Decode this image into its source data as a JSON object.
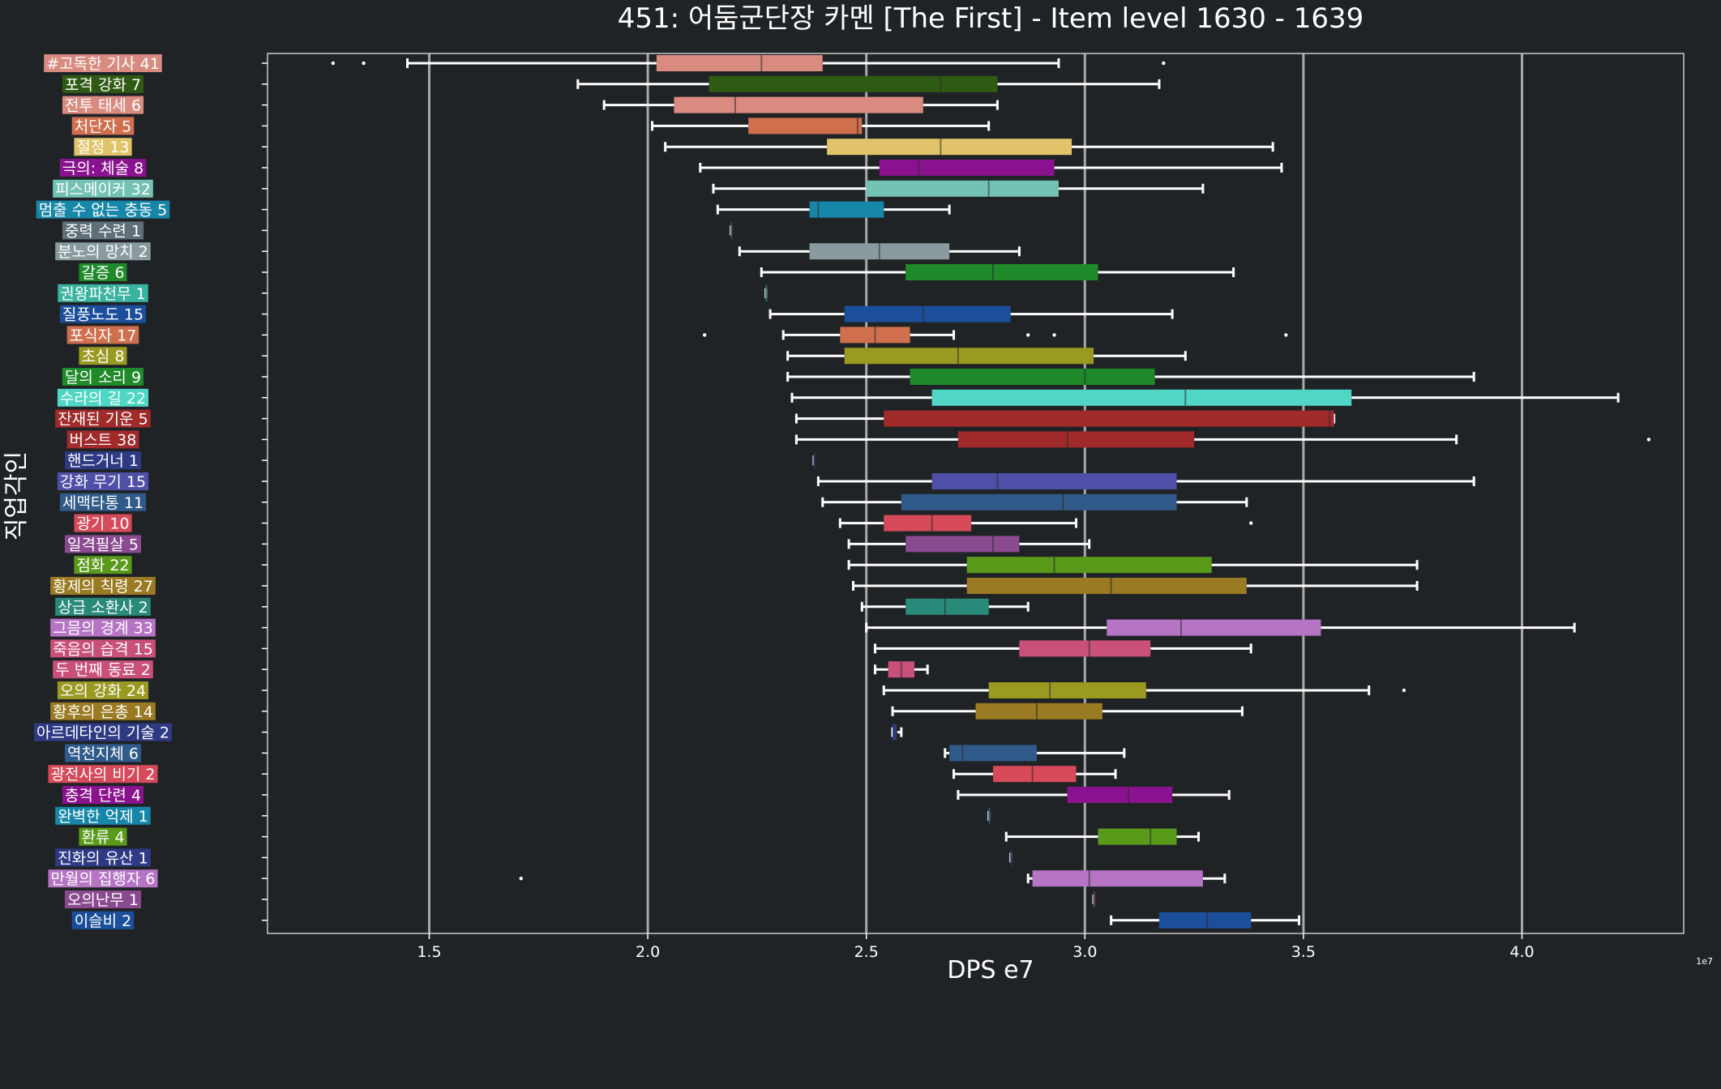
{
  "chart_data": {
    "type": "boxplot",
    "orientation": "horizontal",
    "title": "451: 어둠군단장 카멘 [The First] - Item level 1630 - 1639",
    "xlabel": "DPS e7",
    "ylabel": "직업각인",
    "x_offset_label": "1e7",
    "xlim": [
      1.13,
      4.37
    ],
    "xticks": [
      1.5,
      2.0,
      2.5,
      3.0,
      3.5,
      4.0
    ],
    "xtick_labels": [
      "1.5",
      "2.0",
      "2.5",
      "3.0",
      "3.5",
      "4.0"
    ],
    "grid": "vertical, at x ticks",
    "categories": [
      {
        "label": "#고독한 기사 41",
        "color": "#D98B80",
        "whisker_low": 1.45,
        "q1": 2.02,
        "median": 2.26,
        "q3": 2.4,
        "whisker_high": 2.94,
        "outliers": [
          1.28,
          1.35,
          3.18
        ]
      },
      {
        "label": "포격 강화 7",
        "color": "#2F5A14",
        "whisker_low": 1.84,
        "q1": 2.14,
        "median": 2.67,
        "q3": 2.8,
        "whisker_high": 3.17,
        "outliers": []
      },
      {
        "label": "전투 태세 6",
        "color": "#D98B80",
        "whisker_low": 1.9,
        "q1": 2.06,
        "median": 2.2,
        "q3": 2.63,
        "whisker_high": 2.8,
        "outliers": []
      },
      {
        "label": "처단자 5",
        "color": "#CF6F4E",
        "whisker_low": 2.01,
        "q1": 2.23,
        "median": 2.48,
        "q3": 2.49,
        "whisker_high": 2.78,
        "outliers": []
      },
      {
        "label": "절정 13",
        "color": "#E1C46A",
        "whisker_low": 2.04,
        "q1": 2.41,
        "median": 2.67,
        "q3": 2.97,
        "whisker_high": 3.43,
        "outliers": []
      },
      {
        "label": "극의: 체술 8",
        "color": "#8A128F",
        "whisker_low": 2.12,
        "q1": 2.53,
        "median": 2.62,
        "q3": 2.93,
        "whisker_high": 3.45,
        "outliers": []
      },
      {
        "label": "피스메이커 32",
        "color": "#74C2B4",
        "whisker_low": 2.15,
        "q1": 2.5,
        "median": 2.78,
        "q3": 2.94,
        "whisker_high": 3.27,
        "outliers": []
      },
      {
        "label": "멈출 수 없는 충동 5",
        "color": "#1687A8",
        "whisker_low": 2.16,
        "q1": 2.37,
        "median": 2.39,
        "q3": 2.54,
        "whisker_high": 2.69,
        "outliers": []
      },
      {
        "label": "중력 수련 1",
        "color": "#5F6F78",
        "whisker_low": 2.19,
        "q1": 2.19,
        "median": 2.19,
        "q3": 2.19,
        "whisker_high": 2.19,
        "outliers": []
      },
      {
        "label": "분노의 망치 2",
        "color": "#8A9BA0",
        "whisker_low": 2.21,
        "q1": 2.37,
        "median": 2.53,
        "q3": 2.69,
        "whisker_high": 2.85,
        "outliers": []
      },
      {
        "label": "갈증 6",
        "color": "#1E8A2A",
        "whisker_low": 2.26,
        "q1": 2.59,
        "median": 2.79,
        "q3": 3.03,
        "whisker_high": 3.34,
        "outliers": []
      },
      {
        "label": "권왕파천무 1",
        "color": "#3AB3A0",
        "whisker_low": 2.27,
        "q1": 2.27,
        "median": 2.27,
        "q3": 2.27,
        "whisker_high": 2.27,
        "outliers": []
      },
      {
        "label": "질풍노도 15",
        "color": "#1B4F9C",
        "whisker_low": 2.28,
        "q1": 2.45,
        "median": 2.63,
        "q3": 2.83,
        "whisker_high": 3.2,
        "outliers": []
      },
      {
        "label": "포식자 17",
        "color": "#CF6F4E",
        "whisker_low": 2.31,
        "q1": 2.44,
        "median": 2.52,
        "q3": 2.6,
        "whisker_high": 2.7,
        "outliers": [
          2.13,
          2.87,
          2.93,
          3.46
        ]
      },
      {
        "label": "초심 8",
        "color": "#9A9A22",
        "whisker_low": 2.32,
        "q1": 2.45,
        "median": 2.71,
        "q3": 3.02,
        "whisker_high": 3.23,
        "outliers": []
      },
      {
        "label": "달의 소리 9",
        "color": "#1E8A2A",
        "whisker_low": 2.32,
        "q1": 2.6,
        "median": 3.0,
        "q3": 3.16,
        "whisker_high": 3.89,
        "outliers": []
      },
      {
        "label": "수라의 길 22",
        "color": "#4FD6C4",
        "whisker_low": 2.33,
        "q1": 2.65,
        "median": 3.23,
        "q3": 3.61,
        "whisker_high": 4.22,
        "outliers": []
      },
      {
        "label": "잔재된 기운 5",
        "color": "#A12A2A",
        "whisker_low": 2.34,
        "q1": 2.54,
        "median": 3.56,
        "q3": 3.57,
        "whisker_high": 3.57,
        "outliers": []
      },
      {
        "label": "버스트 38",
        "color": "#A12A2A",
        "whisker_low": 2.34,
        "q1": 2.71,
        "median": 2.96,
        "q3": 3.25,
        "whisker_high": 3.85,
        "outliers": [
          4.29
        ]
      },
      {
        "label": "핸드거너 1",
        "color": "#2F3A85",
        "whisker_low": 2.38,
        "q1": 2.38,
        "median": 2.38,
        "q3": 2.38,
        "whisker_high": 2.38,
        "outliers": []
      },
      {
        "label": "강화 무기 15",
        "color": "#4F4FA8",
        "whisker_low": 2.39,
        "q1": 2.65,
        "median": 2.8,
        "q3": 3.21,
        "whisker_high": 3.89,
        "outliers": []
      },
      {
        "label": "세맥타통 11",
        "color": "#2F5A8A",
        "whisker_low": 2.4,
        "q1": 2.58,
        "median": 2.95,
        "q3": 3.21,
        "whisker_high": 3.37,
        "outliers": []
      },
      {
        "label": "광기 10",
        "color": "#D64A5A",
        "whisker_low": 2.44,
        "q1": 2.54,
        "median": 2.65,
        "q3": 2.74,
        "whisker_high": 2.98,
        "outliers": [
          3.38
        ]
      },
      {
        "label": "일격필살 5",
        "color": "#8A4A8F",
        "whisker_low": 2.46,
        "q1": 2.59,
        "median": 2.79,
        "q3": 2.85,
        "whisker_high": 3.01,
        "outliers": []
      },
      {
        "label": "점화 22",
        "color": "#5A9A1A",
        "whisker_low": 2.46,
        "q1": 2.73,
        "median": 2.93,
        "q3": 3.29,
        "whisker_high": 3.76,
        "outliers": []
      },
      {
        "label": "황제의 칙령 27",
        "color": "#9A7A22",
        "whisker_low": 2.47,
        "q1": 2.73,
        "median": 3.06,
        "q3": 3.37,
        "whisker_high": 3.76,
        "outliers": []
      },
      {
        "label": "상급 소환사 2",
        "color": "#2A8A7A",
        "whisker_low": 2.49,
        "q1": 2.59,
        "median": 2.68,
        "q3": 2.78,
        "whisker_high": 2.87,
        "outliers": []
      },
      {
        "label": "그믐의 경계 33",
        "color": "#B574C4",
        "whisker_low": 2.5,
        "q1": 3.05,
        "median": 3.22,
        "q3": 3.54,
        "whisker_high": 4.12,
        "outliers": []
      },
      {
        "label": "죽음의 습격 15",
        "color": "#C9507A",
        "whisker_low": 2.52,
        "q1": 2.85,
        "median": 3.01,
        "q3": 3.15,
        "whisker_high": 3.38,
        "outliers": []
      },
      {
        "label": "두 번째 동료 2",
        "color": "#C9507A",
        "whisker_low": 2.52,
        "q1": 2.55,
        "median": 2.58,
        "q3": 2.61,
        "whisker_high": 2.64,
        "outliers": []
      },
      {
        "label": "오의 강화 24",
        "color": "#9A9A22",
        "whisker_low": 2.54,
        "q1": 2.78,
        "median": 2.92,
        "q3": 3.14,
        "whisker_high": 3.65,
        "outliers": [
          3.73
        ]
      },
      {
        "label": "황후의 은총 14",
        "color": "#9A7A22",
        "whisker_low": 2.56,
        "q1": 2.75,
        "median": 2.89,
        "q3": 3.04,
        "whisker_high": 3.36,
        "outliers": []
      },
      {
        "label": "아르데타인의 기술 2",
        "color": "#2F3A85",
        "whisker_low": 2.56,
        "q1": 2.56,
        "median": 2.57,
        "q3": 2.57,
        "whisker_high": 2.58,
        "outliers": []
      },
      {
        "label": "역천지체 6",
        "color": "#2F5A8A",
        "whisker_low": 2.68,
        "q1": 2.69,
        "median": 2.72,
        "q3": 2.89,
        "whisker_high": 3.09,
        "outliers": []
      },
      {
        "label": "광전사의 비기 2",
        "color": "#D64A5A",
        "whisker_low": 2.7,
        "q1": 2.79,
        "median": 2.88,
        "q3": 2.98,
        "whisker_high": 3.07,
        "outliers": []
      },
      {
        "label": "충격 단련 4",
        "color": "#8A128F",
        "whisker_low": 2.71,
        "q1": 2.96,
        "median": 3.1,
        "q3": 3.2,
        "whisker_high": 3.33,
        "outliers": []
      },
      {
        "label": "완벽한 억제 1",
        "color": "#1687A8",
        "whisker_low": 2.78,
        "q1": 2.78,
        "median": 2.78,
        "q3": 2.78,
        "whisker_high": 2.78,
        "outliers": []
      },
      {
        "label": "환류 4",
        "color": "#5A9A1A",
        "whisker_low": 2.82,
        "q1": 3.03,
        "median": 3.15,
        "q3": 3.21,
        "whisker_high": 3.26,
        "outliers": []
      },
      {
        "label": "진화의 유산 1",
        "color": "#2F3A85",
        "whisker_low": 2.83,
        "q1": 2.83,
        "median": 2.83,
        "q3": 2.83,
        "whisker_high": 2.83,
        "outliers": []
      },
      {
        "label": "만월의 집행자 6",
        "color": "#B574C4",
        "whisker_low": 2.87,
        "q1": 2.88,
        "median": 3.01,
        "q3": 3.27,
        "whisker_high": 3.32,
        "outliers": [
          1.71
        ]
      },
      {
        "label": "오의난무 1",
        "color": "#8A4A8F",
        "whisker_low": 3.02,
        "q1": 3.02,
        "median": 3.02,
        "q3": 3.02,
        "whisker_high": 3.02,
        "outliers": []
      },
      {
        "label": "이슬비 2",
        "color": "#1B4F9C",
        "whisker_low": 3.06,
        "q1": 3.17,
        "median": 3.28,
        "q3": 3.38,
        "whisker_high": 3.49,
        "outliers": []
      }
    ]
  }
}
